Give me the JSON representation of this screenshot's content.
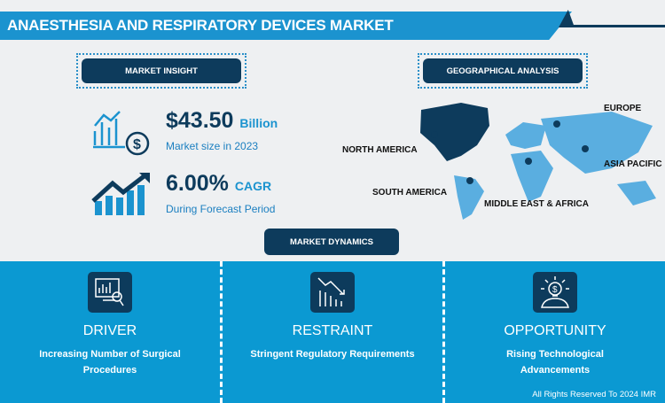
{
  "header": {
    "title": "ANAESTHESIA AND RESPIRATORY DEVICES MARKET"
  },
  "insight": {
    "label": "MARKET INSIGHT",
    "size_value": "$43.50",
    "size_unit": "Billion",
    "size_caption": "Market size in 2023",
    "cagr_value": "6.00%",
    "cagr_unit": "CAGR",
    "cagr_caption": "During Forecast Period"
  },
  "geo": {
    "label": "GEOGRAPHICAL ANALYSIS",
    "regions": [
      "NORTH AMERICA",
      "EUROPE",
      "ASIA PACIFIC",
      "SOUTH AMERICA",
      "MIDDLE EAST & AFRICA"
    ],
    "highlight_color": "#0d3b5c",
    "map_color": "#5aaee0"
  },
  "dynamics": {
    "label": "MARKET DYNAMICS",
    "items": [
      {
        "heading": "DRIVER",
        "text": "Increasing Number of Surgical Procedures",
        "icon": "chart-magnifier-icon"
      },
      {
        "heading": "RESTRAINT",
        "text": "Stringent Regulatory Requirements",
        "icon": "declining-chart-icon"
      },
      {
        "heading": "OPPORTUNITY",
        "text": "Rising Technological Advancements",
        "icon": "lightbulb-dollar-icon"
      }
    ]
  },
  "footer": {
    "copyright": "All Rights Reserved To 2024 IMR"
  }
}
